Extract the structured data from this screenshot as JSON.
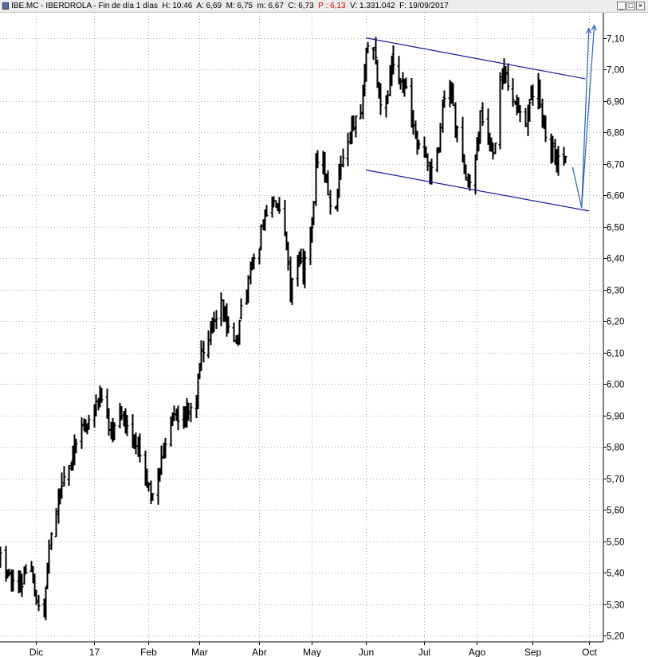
{
  "window": {
    "title": {
      "symbol": "IBE.MC",
      "name": "IBERDROLA",
      "period": "Fin de día 1 días",
      "high_label": "H: 10:46",
      "open_label": "A: 6,69",
      "max_label": "M: 6,75",
      "min_label": "m: 6,67",
      "close_label": "C: 6,73",
      "p_label": "P : 6,13",
      "volume_label": "V: 1.331.042",
      "date_label": "F: 19/09/2017"
    },
    "buttons": {
      "minimize": "_",
      "maximize": "□",
      "close": "×"
    },
    "accent_color": "#e00000"
  },
  "chart_data": {
    "type": "ohlc",
    "title": "",
    "xlabel": "",
    "ylabel": "",
    "ylim": [
      5.18,
      7.18
    ],
    "y_ticks": [
      "7,10",
      "7,00",
      "6,90",
      "6,80",
      "6,70",
      "6,60",
      "6,50",
      "6,40",
      "6,30",
      "6,20",
      "6,10",
      "6,00",
      "5,90",
      "5,80",
      "5,70",
      "5,60",
      "5,50",
      "5,40",
      "5,30",
      "5,20"
    ],
    "y_tick_values": [
      7.1,
      7.0,
      6.9,
      6.8,
      6.7,
      6.6,
      6.5,
      6.4,
      6.3,
      6.2,
      6.1,
      6.0,
      5.9,
      5.8,
      5.7,
      5.6,
      5.5,
      5.4,
      5.3,
      5.2
    ],
    "x_ticks": [
      "Dic",
      "17",
      "Feb",
      "Mar",
      "Abr",
      "May",
      "Jun",
      "Jul",
      "Ago",
      "Sep",
      "Oct"
    ],
    "x_tick_dates": [
      "2016-12-01",
      "2017-01-02",
      "2017-02-01",
      "2017-03-01",
      "2017-04-03",
      "2017-05-02",
      "2017-06-01",
      "2017-07-03",
      "2017-08-01",
      "2017-09-01",
      "2017-10-02"
    ],
    "x_range": [
      "2016-11-11",
      "2017-10-10"
    ],
    "grid": true,
    "y_axis_position": "right",
    "series": [
      {
        "name": "",
        "type": "close_anchors",
        "points": [
          [
            "2016-11-11",
            5.45
          ],
          [
            "2016-11-15",
            5.4
          ],
          [
            "2016-11-18",
            5.35
          ],
          [
            "2016-11-23",
            5.38
          ],
          [
            "2016-11-28",
            5.4
          ],
          [
            "2016-12-01",
            5.32
          ],
          [
            "2016-12-05",
            5.28
          ],
          [
            "2016-12-08",
            5.48
          ],
          [
            "2016-12-12",
            5.6
          ],
          [
            "2016-12-15",
            5.7
          ],
          [
            "2016-12-19",
            5.75
          ],
          [
            "2016-12-22",
            5.82
          ],
          [
            "2016-12-28",
            5.88
          ],
          [
            "2017-01-02",
            5.93
          ],
          [
            "2017-01-05",
            5.97
          ],
          [
            "2017-01-09",
            5.88
          ],
          [
            "2017-01-12",
            5.85
          ],
          [
            "2017-01-16",
            5.9
          ],
          [
            "2017-01-19",
            5.87
          ],
          [
            "2017-01-23",
            5.8
          ],
          [
            "2017-01-26",
            5.82
          ],
          [
            "2017-01-30",
            5.72
          ],
          [
            "2017-02-02",
            5.64
          ],
          [
            "2017-02-06",
            5.7
          ],
          [
            "2017-02-09",
            5.8
          ],
          [
            "2017-02-13",
            5.88
          ],
          [
            "2017-02-16",
            5.9
          ],
          [
            "2017-02-20",
            5.88
          ],
          [
            "2017-02-23",
            5.92
          ],
          [
            "2017-02-27",
            5.98
          ],
          [
            "2017-03-02",
            6.1
          ],
          [
            "2017-03-06",
            6.15
          ],
          [
            "2017-03-09",
            6.18
          ],
          [
            "2017-03-13",
            6.25
          ],
          [
            "2017-03-16",
            6.2
          ],
          [
            "2017-03-20",
            6.12
          ],
          [
            "2017-03-23",
            6.2
          ],
          [
            "2017-03-27",
            6.3
          ],
          [
            "2017-03-30",
            6.38
          ],
          [
            "2017-04-03",
            6.45
          ],
          [
            "2017-04-06",
            6.55
          ],
          [
            "2017-04-10",
            6.58
          ],
          [
            "2017-04-13",
            6.55
          ],
          [
            "2017-04-18",
            6.45
          ],
          [
            "2017-04-20",
            6.3
          ],
          [
            "2017-04-24",
            6.4
          ],
          [
            "2017-04-27",
            6.35
          ],
          [
            "2017-05-02",
            6.5
          ],
          [
            "2017-05-04",
            6.68
          ],
          [
            "2017-05-08",
            6.72
          ],
          [
            "2017-05-11",
            6.6
          ],
          [
            "2017-05-15",
            6.55
          ],
          [
            "2017-05-18",
            6.7
          ],
          [
            "2017-05-22",
            6.78
          ],
          [
            "2017-05-25",
            6.82
          ],
          [
            "2017-05-29",
            6.88
          ],
          [
            "2017-06-01",
            7.05
          ],
          [
            "2017-06-05",
            7.08
          ],
          [
            "2017-06-08",
            6.92
          ],
          [
            "2017-06-12",
            6.88
          ],
          [
            "2017-06-15",
            7.02
          ],
          [
            "2017-06-19",
            6.98
          ],
          [
            "2017-06-22",
            6.95
          ],
          [
            "2017-06-26",
            6.85
          ],
          [
            "2017-06-29",
            6.78
          ],
          [
            "2017-07-03",
            6.72
          ],
          [
            "2017-07-06",
            6.65
          ],
          [
            "2017-07-10",
            6.72
          ],
          [
            "2017-07-13",
            6.88
          ],
          [
            "2017-07-17",
            6.95
          ],
          [
            "2017-07-20",
            6.82
          ],
          [
            "2017-07-24",
            6.72
          ],
          [
            "2017-07-27",
            6.65
          ],
          [
            "2017-07-31",
            6.7
          ],
          [
            "2017-08-03",
            6.88
          ],
          [
            "2017-08-07",
            6.78
          ],
          [
            "2017-08-10",
            6.72
          ],
          [
            "2017-08-14",
            6.98
          ],
          [
            "2017-08-17",
            6.98
          ],
          [
            "2017-08-21",
            6.92
          ],
          [
            "2017-08-24",
            6.88
          ],
          [
            "2017-08-28",
            6.82
          ],
          [
            "2017-08-31",
            6.9
          ],
          [
            "2017-09-04",
            6.95
          ],
          [
            "2017-09-07",
            6.82
          ],
          [
            "2017-09-11",
            6.75
          ],
          [
            "2017-09-14",
            6.7
          ],
          [
            "2017-09-19",
            6.73
          ]
        ]
      }
    ],
    "annotations": {
      "color": "#1a1aa0",
      "arrow_color": "#3a6ab8",
      "trend_lines": [
        {
          "name": "channel-upper",
          "start": [
            "2017-06-01",
            7.1
          ],
          "end": [
            "2017-09-30",
            6.97
          ]
        },
        {
          "name": "channel-lower",
          "start": [
            "2017-06-01",
            6.68
          ],
          "end": [
            "2017-10-02",
            6.55
          ]
        }
      ],
      "arrows": [
        {
          "name": "projection-down",
          "start": [
            "2017-09-23",
            6.69
          ],
          "end": [
            "2017-09-28",
            6.56
          ],
          "head": false
        },
        {
          "name": "projection-up-1",
          "start": [
            "2017-09-28",
            6.56
          ],
          "end": [
            "2017-10-02",
            7.13
          ],
          "head": true
        },
        {
          "name": "projection-up-2",
          "start": [
            "2017-09-28",
            6.56
          ],
          "end": [
            "2017-10-05",
            7.14
          ],
          "head": true
        }
      ]
    }
  }
}
